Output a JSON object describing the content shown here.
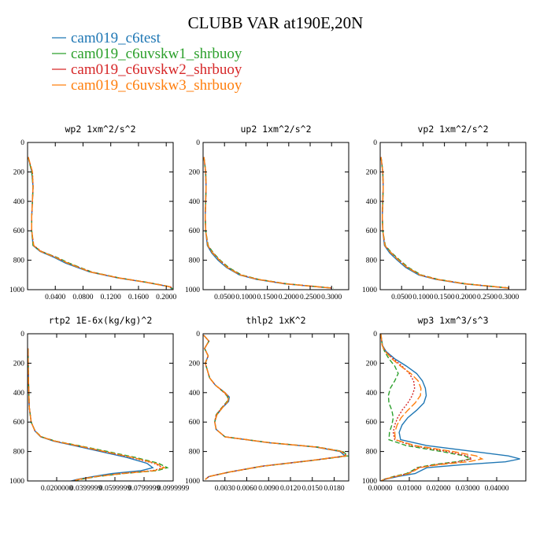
{
  "chart_data": {
    "title": "CLUBB VAR at190E,20N",
    "legend": [
      {
        "label": "cam019_c6test",
        "color": "#1f77b4",
        "dash": ""
      },
      {
        "label": "cam019_c6uvskw1_shrbuoy",
        "color": "#2ca02c",
        "dash": "6,3"
      },
      {
        "label": "cam019_c6uvskw2_shrbuoy",
        "color": "#d62728",
        "dash": "2,2"
      },
      {
        "label": "cam019_c6uvskw3_shrbuoy",
        "color": "#ff7f0e",
        "dash": "9,3"
      }
    ],
    "panels": [
      {
        "type": "line",
        "title": "wp2  1xm^2/s^2",
        "xlim": [
          0,
          0.21
        ],
        "ylim": [
          0,
          1000
        ],
        "y_inverted": true,
        "xticks": [
          0.04,
          0.08,
          0.12,
          0.16,
          0.2
        ],
        "xtick_labels": [
          "0.0400",
          "0.0800",
          "0.1200",
          "0.1600",
          "0.2000"
        ],
        "yticks": [
          0,
          200,
          400,
          600,
          800,
          1000
        ],
        "y": [
          100,
          200,
          300,
          400,
          500,
          600,
          700,
          740,
          780,
          820,
          850,
          880,
          920,
          950,
          980,
          995
        ],
        "series": [
          {
            "name": "cam019_c6test",
            "values": [
              0.001,
              0.006,
              0.008,
              0.007,
              0.006,
              0.006,
              0.008,
              0.018,
              0.038,
              0.055,
              0.072,
              0.09,
              0.13,
              0.17,
              0.205,
              0.208
            ]
          },
          {
            "name": "cam019_c6uvskw1_shrbuoy",
            "values": [
              0.001,
              0.006,
              0.008,
              0.007,
              0.006,
              0.006,
              0.008,
              0.02,
              0.042,
              0.06,
              0.076,
              0.093,
              0.132,
              0.172,
              0.206,
              0.209
            ]
          },
          {
            "name": "cam019_c6uvskw2_shrbuoy",
            "values": [
              0.001,
              0.007,
              0.008,
              0.007,
              0.006,
              0.006,
              0.009,
              0.02,
              0.041,
              0.058,
              0.075,
              0.092,
              0.131,
              0.171,
              0.206,
              0.209
            ]
          },
          {
            "name": "cam019_c6uvskw3_shrbuoy",
            "values": [
              0.001,
              0.007,
              0.008,
              0.007,
              0.006,
              0.006,
              0.009,
              0.019,
              0.04,
              0.058,
              0.074,
              0.091,
              0.131,
              0.171,
              0.205,
              0.209
            ]
          }
        ]
      },
      {
        "type": "line",
        "title": "up2  1xm^2/s^2",
        "xlim": [
          0,
          0.34
        ],
        "ylim": [
          0,
          1000
        ],
        "y_inverted": true,
        "xticks": [
          0.05,
          0.1,
          0.15,
          0.2,
          0.25,
          0.3
        ],
        "xtick_labels": [
          "0.0500",
          "0.1000",
          "0.1500",
          "0.2000",
          "0.2500",
          "0.3000"
        ],
        "yticks": [
          0,
          200,
          400,
          600,
          800,
          1000
        ],
        "y": [
          100,
          200,
          300,
          400,
          500,
          600,
          700,
          750,
          800,
          850,
          900,
          930,
          960,
          990
        ],
        "series": [
          {
            "name": "cam019_c6test",
            "values": [
              0.002,
              0.006,
              0.007,
              0.006,
              0.005,
              0.006,
              0.01,
              0.02,
              0.035,
              0.055,
              0.085,
              0.125,
              0.19,
              0.3
            ]
          },
          {
            "name": "cam019_c6uvskw1_shrbuoy",
            "values": [
              0.002,
              0.006,
              0.007,
              0.006,
              0.005,
              0.006,
              0.012,
              0.024,
              0.04,
              0.06,
              0.09,
              0.13,
              0.195,
              0.305
            ]
          },
          {
            "name": "cam019_c6uvskw2_shrbuoy",
            "values": [
              0.002,
              0.006,
              0.007,
              0.006,
              0.005,
              0.006,
              0.011,
              0.023,
              0.039,
              0.058,
              0.088,
              0.128,
              0.193,
              0.303
            ]
          },
          {
            "name": "cam019_c6uvskw3_shrbuoy",
            "values": [
              0.002,
              0.006,
              0.007,
              0.006,
              0.005,
              0.006,
              0.011,
              0.022,
              0.038,
              0.057,
              0.087,
              0.127,
              0.192,
              0.302
            ]
          }
        ]
      },
      {
        "type": "line",
        "title": "vp2  1xm^2/s^2",
        "xlim": [
          0,
          0.34
        ],
        "ylim": [
          0,
          1000
        ],
        "y_inverted": true,
        "xticks": [
          0.05,
          0.1,
          0.15,
          0.2,
          0.25,
          0.3
        ],
        "xtick_labels": [
          "0.0500",
          "0.1000",
          "0.1500",
          "0.2000",
          "0.2500",
          "0.3000"
        ],
        "yticks": [
          0,
          200,
          400,
          600,
          800,
          1000
        ],
        "y": [
          100,
          200,
          300,
          400,
          500,
          600,
          700,
          750,
          800,
          850,
          900,
          930,
          960,
          990
        ],
        "series": [
          {
            "name": "cam019_c6test",
            "values": [
              0.002,
              0.006,
              0.007,
              0.006,
              0.005,
              0.006,
              0.01,
              0.022,
              0.04,
              0.06,
              0.09,
              0.13,
              0.195,
              0.3
            ]
          },
          {
            "name": "cam019_c6uvskw1_shrbuoy",
            "values": [
              0.002,
              0.006,
              0.007,
              0.006,
              0.005,
              0.006,
              0.012,
              0.027,
              0.046,
              0.066,
              0.096,
              0.135,
              0.2,
              0.305
            ]
          },
          {
            "name": "cam019_c6uvskw2_shrbuoy",
            "values": [
              0.002,
              0.006,
              0.007,
              0.006,
              0.005,
              0.006,
              0.011,
              0.026,
              0.044,
              0.064,
              0.094,
              0.133,
              0.198,
              0.303
            ]
          },
          {
            "name": "cam019_c6uvskw3_shrbuoy",
            "values": [
              0.002,
              0.006,
              0.007,
              0.006,
              0.005,
              0.006,
              0.011,
              0.025,
              0.043,
              0.063,
              0.093,
              0.132,
              0.197,
              0.302
            ]
          }
        ]
      },
      {
        "type": "line",
        "title": "rtp2  1E-6x(kg/kg)^2",
        "xlim": [
          0,
          0.1
        ],
        "ylim": [
          0,
          1000
        ],
        "y_inverted": true,
        "xticks": [
          0.02,
          0.04,
          0.06,
          0.08,
          0.1
        ],
        "xtick_labels": [
          "0.0200000",
          "0.0399999",
          "0.0599999",
          "0.0799999",
          "0.0999999"
        ],
        "xtick_font_size": 8.5,
        "yticks": [
          0,
          200,
          400,
          600,
          800,
          1000
        ],
        "y": [
          100,
          300,
          500,
          600,
          660,
          700,
          730,
          760,
          800,
          840,
          880,
          910,
          930,
          950,
          970,
          990,
          1000
        ],
        "series": [
          {
            "name": "cam019_c6test",
            "values": [
              0.0003,
              0.0006,
              0.0012,
              0.0025,
              0.005,
              0.009,
              0.018,
              0.032,
              0.05,
              0.068,
              0.082,
              0.086,
              0.078,
              0.058,
              0.045,
              0.034,
              0.03
            ]
          },
          {
            "name": "cam019_c6uvskw1_shrbuoy",
            "values": [
              0.0003,
              0.0006,
              0.0012,
              0.0025,
              0.0052,
              0.0095,
              0.0195,
              0.035,
              0.055,
              0.074,
              0.09,
              0.096,
              0.089,
              0.066,
              0.048,
              0.036,
              0.032
            ]
          },
          {
            "name": "cam019_c6uvskw2_shrbuoy",
            "values": [
              0.0003,
              0.0006,
              0.0012,
              0.0025,
              0.0051,
              0.0093,
              0.0188,
              0.0335,
              0.052,
              0.071,
              0.087,
              0.093,
              0.086,
              0.064,
              0.047,
              0.035,
              0.031
            ]
          },
          {
            "name": "cam019_c6uvskw3_shrbuoy",
            "values": [
              0.0003,
              0.0006,
              0.0012,
              0.0025,
              0.0051,
              0.0093,
              0.019,
              0.034,
              0.053,
              0.072,
              0.088,
              0.094,
              0.087,
              0.065,
              0.047,
              0.035,
              0.031
            ]
          }
        ]
      },
      {
        "type": "line",
        "title": "thlp2  1xK^2",
        "xlim": [
          0,
          0.02
        ],
        "ylim": [
          0,
          1000
        ],
        "y_inverted": true,
        "xticks": [
          0.003,
          0.006,
          0.009,
          0.012,
          0.015,
          0.018
        ],
        "xtick_labels": [
          "0.0030",
          "0.0060",
          "0.0090",
          "0.0120",
          "0.0150",
          "0.0180"
        ],
        "yticks": [
          0,
          200,
          400,
          600,
          800,
          1000
        ],
        "y": [
          10,
          50,
          100,
          150,
          200,
          250,
          300,
          350,
          400,
          430,
          460,
          500,
          550,
          600,
          650,
          700,
          740,
          770,
          800,
          830,
          860,
          900,
          940,
          970,
          990
        ],
        "series": [
          {
            "name": "cam019_c6test",
            "values": [
              0.0001,
              0.0008,
              0.0002,
              0.0007,
              0.0003,
              0.0006,
              0.0009,
              0.0017,
              0.003,
              0.0036,
              0.0035,
              0.0027,
              0.0019,
              0.0016,
              0.0018,
              0.003,
              0.009,
              0.0155,
              0.0188,
              0.0195,
              0.015,
              0.008,
              0.0035,
              0.0008,
              0.0003
            ]
          },
          {
            "name": "cam019_c6uvskw1_shrbuoy",
            "values": [
              0.0001,
              0.0008,
              0.0002,
              0.0007,
              0.0003,
              0.0006,
              0.0009,
              0.0017,
              0.0029,
              0.0034,
              0.0033,
              0.0026,
              0.0018,
              0.0016,
              0.0018,
              0.003,
              0.0092,
              0.0158,
              0.0192,
              0.0199,
              0.0152,
              0.0082,
              0.0036,
              0.0008,
              0.0003
            ]
          },
          {
            "name": "cam019_c6uvskw2_shrbuoy",
            "values": [
              0.0001,
              0.0008,
              0.0002,
              0.0007,
              0.0003,
              0.0006,
              0.0009,
              0.0017,
              0.0029,
              0.0035,
              0.0034,
              0.0026,
              0.0018,
              0.0016,
              0.0018,
              0.003,
              0.0091,
              0.0157,
              0.0191,
              0.0197,
              0.0151,
              0.0081,
              0.0036,
              0.0008,
              0.0003
            ]
          },
          {
            "name": "cam019_c6uvskw3_shrbuoy",
            "values": [
              0.0001,
              0.0008,
              0.0002,
              0.0007,
              0.0003,
              0.0006,
              0.0009,
              0.0017,
              0.003,
              0.0035,
              0.0034,
              0.0027,
              0.0019,
              0.0016,
              0.0018,
              0.003,
              0.0091,
              0.0156,
              0.019,
              0.0196,
              0.015,
              0.0081,
              0.0035,
              0.0008,
              0.0003
            ]
          }
        ]
      },
      {
        "type": "line",
        "title": "wp3  1xm^3/s^3",
        "xlim": [
          0,
          0.05
        ],
        "ylim": [
          0,
          1000
        ],
        "y_inverted": true,
        "xticks": [
          0,
          0.01,
          0.02,
          0.03,
          0.04
        ],
        "xtick_labels": [
          "0.00000",
          "0.01000",
          "0.02000",
          "0.03000",
          "0.04000"
        ],
        "yticks": [
          0,
          200,
          400,
          600,
          800,
          1000
        ],
        "y": [
          0,
          30,
          80,
          120,
          170,
          220,
          270,
          320,
          370,
          420,
          470,
          520,
          570,
          620,
          670,
          720,
          760,
          800,
          830,
          850,
          870,
          890,
          910,
          930,
          950,
          970,
          990,
          1000
        ],
        "series": [
          {
            "name": "cam019_c6test",
            "values": [
              0.0002,
              0.0004,
              0.0008,
              0.002,
              0.005,
              0.009,
              0.0125,
              0.0145,
              0.0155,
              0.0158,
              0.015,
              0.0125,
              0.0095,
              0.0075,
              0.0065,
              0.007,
              0.016,
              0.032,
              0.044,
              0.048,
              0.043,
              0.028,
              0.016,
              0.014,
              0.012,
              0.006,
              0.0015,
              0.0004
            ]
          },
          {
            "name": "cam019_c6uvskw1_shrbuoy",
            "values": [
              0.0002,
              0.0004,
              0.0007,
              0.0015,
              0.003,
              0.005,
              0.0062,
              0.005,
              0.0035,
              0.0028,
              0.003,
              0.004,
              0.0045,
              0.004,
              0.0032,
              0.003,
              0.009,
              0.021,
              0.029,
              0.031,
              0.026,
              0.018,
              0.0125,
              0.011,
              0.009,
              0.0045,
              0.0012,
              0.0003
            ]
          },
          {
            "name": "cam019_c6uvskw2_shrbuoy",
            "values": [
              0.0002,
              0.0004,
              0.0007,
              0.0018,
              0.0045,
              0.0075,
              0.01,
              0.0115,
              0.0118,
              0.011,
              0.0095,
              0.0075,
              0.006,
              0.005,
              0.0045,
              0.005,
              0.011,
              0.023,
              0.03,
              0.0315,
              0.027,
              0.019,
              0.013,
              0.0115,
              0.0095,
              0.005,
              0.0013,
              0.0003
            ]
          },
          {
            "name": "cam019_c6uvskw3_shrbuoy",
            "values": [
              0.0002,
              0.0004,
              0.0007,
              0.0017,
              0.004,
              0.007,
              0.0105,
              0.013,
              0.014,
              0.0138,
              0.012,
              0.0095,
              0.0072,
              0.0058,
              0.005,
              0.0052,
              0.012,
              0.025,
              0.033,
              0.035,
              0.03,
              0.02,
              0.0135,
              0.0118,
              0.0098,
              0.0052,
              0.0013,
              0.0003
            ]
          }
        ]
      }
    ]
  }
}
